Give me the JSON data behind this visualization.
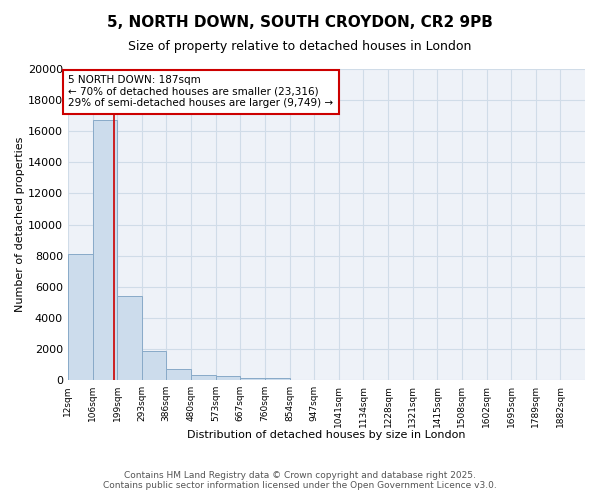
{
  "title_line1": "5, NORTH DOWN, SOUTH CROYDON, CR2 9PB",
  "title_line2": "Size of property relative to detached houses in London",
  "xlabel": "Distribution of detached houses by size in London",
  "ylabel": "Number of detached properties",
  "bin_edges": [
    12,
    106,
    199,
    293,
    386,
    480,
    573,
    667,
    760,
    854,
    947,
    1041,
    1134,
    1228,
    1321,
    1415,
    1508,
    1602,
    1695,
    1789,
    1882
  ],
  "bar_heights": [
    8100,
    16700,
    5400,
    1850,
    750,
    350,
    250,
    150,
    130,
    0,
    0,
    0,
    0,
    0,
    0,
    0,
    0,
    0,
    0,
    0
  ],
  "bar_color": "#ccdcec",
  "bar_edge_color": "#88aac8",
  "grid_color": "#d0dce8",
  "background_color": "#eef2f8",
  "fig_background": "#ffffff",
  "vline_x": 187,
  "vline_color": "#cc0000",
  "annotation_text": "5 NORTH DOWN: 187sqm\n← 70% of detached houses are smaller (23,316)\n29% of semi-detached houses are larger (9,749) →",
  "annotation_box_color": "#ffffff",
  "annotation_box_edge": "#cc0000",
  "ylim": [
    0,
    20000
  ],
  "yticks": [
    0,
    2000,
    4000,
    6000,
    8000,
    10000,
    12000,
    14000,
    16000,
    18000,
    20000
  ],
  "footer_line1": "Contains HM Land Registry data © Crown copyright and database right 2025.",
  "footer_line2": "Contains public sector information licensed under the Open Government Licence v3.0.",
  "tick_labels": [
    "12sqm",
    "106sqm",
    "199sqm",
    "293sqm",
    "386sqm",
    "480sqm",
    "573sqm",
    "667sqm",
    "760sqm",
    "854sqm",
    "947sqm",
    "1041sqm",
    "1134sqm",
    "1228sqm",
    "1321sqm",
    "1415sqm",
    "1508sqm",
    "1602sqm",
    "1695sqm",
    "1789sqm",
    "1882sqm"
  ]
}
